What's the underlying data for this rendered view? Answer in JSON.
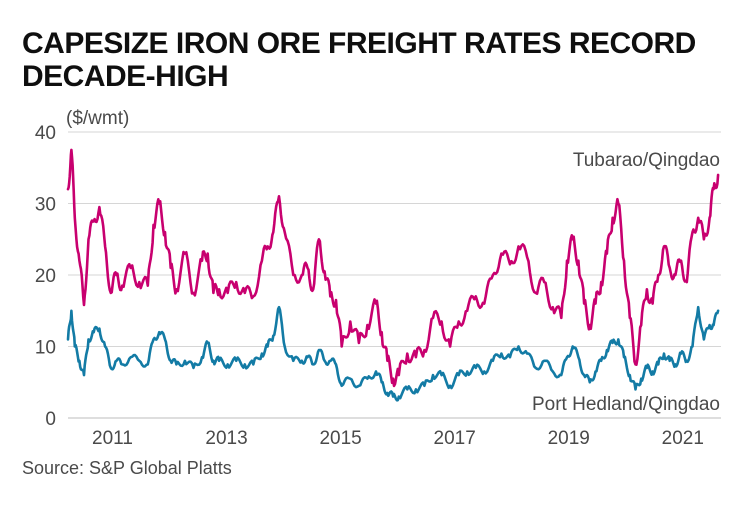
{
  "chart_data": {
    "type": "line",
    "title": "CAPESIZE IRON ORE FREIGHT RATES RECORD DECADE-HIGH",
    "ylabel": "($/wmt)",
    "xlabel": "",
    "ylim": [
      0,
      40
    ],
    "xlim": [
      2010.3,
      2021.75
    ],
    "yticks": [
      0,
      10,
      20,
      30,
      40
    ],
    "xticks": [
      2011,
      2013,
      2015,
      2017,
      2019,
      2021
    ],
    "grid": true,
    "source": "Source: S&P Global Platts",
    "series": [
      {
        "name": "Tubarao/Qingdao",
        "color": "#c8006f",
        "x": [
          2010.3,
          2010.36,
          2010.42,
          2010.5,
          2010.58,
          2010.66,
          2010.75,
          2010.85,
          2010.95,
          2011.05,
          2011.15,
          2011.25,
          2011.4,
          2011.55,
          2011.7,
          2011.8,
          2011.9,
          2012.0,
          2012.1,
          2012.2,
          2012.35,
          2012.5,
          2012.65,
          2012.75,
          2012.85,
          2012.95,
          2013.1,
          2013.25,
          2013.4,
          2013.55,
          2013.7,
          2013.8,
          2013.9,
          2014.0,
          2014.1,
          2014.25,
          2014.4,
          2014.5,
          2014.6,
          2014.7,
          2014.8,
          2014.9,
          2015.0,
          2015.1,
          2015.25,
          2015.4,
          2015.55,
          2015.7,
          2015.8,
          2015.9,
          2016.0,
          2016.1,
          2016.25,
          2016.4,
          2016.55,
          2016.7,
          2016.85,
          2017.0,
          2017.15,
          2017.3,
          2017.45,
          2017.6,
          2017.75,
          2017.9,
          2018.05,
          2018.2,
          2018.35,
          2018.5,
          2018.65,
          2018.8,
          2018.95,
          2019.05,
          2019.15,
          2019.25,
          2019.35,
          2019.45,
          2019.55,
          2019.65,
          2019.75,
          2019.85,
          2019.95,
          2020.05,
          2020.15,
          2020.25,
          2020.35,
          2020.45,
          2020.55,
          2020.65,
          2020.75,
          2020.85,
          2020.95,
          2021.05,
          2021.15,
          2021.25,
          2021.35,
          2021.45,
          2021.55,
          2021.62,
          2021.7
        ],
        "values": [
          32,
          37.5,
          28,
          22,
          15.8,
          25,
          27.5,
          29.5,
          24,
          17.5,
          20,
          18.5,
          21,
          19,
          18.5,
          27,
          30,
          26,
          21,
          18,
          23,
          17.5,
          22,
          23,
          17.5,
          18,
          17.5,
          19,
          17.5,
          17,
          22,
          24,
          26,
          31,
          26,
          20,
          20,
          21,
          18,
          25,
          20.5,
          17,
          16.5,
          10,
          13.5,
          10.5,
          13,
          16,
          12,
          8,
          5.5,
          6,
          9,
          8.5,
          9.5,
          14,
          13.5,
          10,
          13.5,
          15,
          17,
          16,
          20,
          23,
          21.5,
          24,
          22.5,
          17.5,
          19,
          15.5,
          14,
          22,
          25,
          22,
          16,
          13,
          16,
          19,
          23,
          28,
          30,
          22,
          14,
          7.5,
          13,
          18,
          16,
          20,
          24,
          21,
          20,
          22,
          19,
          26,
          28,
          25,
          28,
          32,
          34
        ]
      },
      {
        "name": "Port Hedland/Qingdao",
        "color": "#137ba5",
        "x": [
          2010.3,
          2010.36,
          2010.42,
          2010.5,
          2010.58,
          2010.66,
          2010.75,
          2010.85,
          2010.95,
          2011.05,
          2011.15,
          2011.25,
          2011.4,
          2011.55,
          2011.7,
          2011.8,
          2011.9,
          2012.0,
          2012.1,
          2012.2,
          2012.35,
          2012.5,
          2012.65,
          2012.75,
          2012.85,
          2012.95,
          2013.1,
          2013.25,
          2013.4,
          2013.55,
          2013.7,
          2013.8,
          2013.9,
          2014.0,
          2014.1,
          2014.25,
          2014.4,
          2014.5,
          2014.6,
          2014.7,
          2014.8,
          2014.9,
          2015.0,
          2015.1,
          2015.25,
          2015.4,
          2015.55,
          2015.7,
          2015.8,
          2015.9,
          2016.0,
          2016.1,
          2016.25,
          2016.4,
          2016.55,
          2016.7,
          2016.85,
          2017.0,
          2017.15,
          2017.3,
          2017.45,
          2017.6,
          2017.75,
          2017.9,
          2018.05,
          2018.2,
          2018.35,
          2018.5,
          2018.65,
          2018.8,
          2018.95,
          2019.05,
          2019.15,
          2019.25,
          2019.35,
          2019.45,
          2019.55,
          2019.65,
          2019.75,
          2019.85,
          2019.95,
          2020.05,
          2020.15,
          2020.25,
          2020.35,
          2020.45,
          2020.55,
          2020.65,
          2020.75,
          2020.85,
          2020.95,
          2021.05,
          2021.15,
          2021.25,
          2021.35,
          2021.45,
          2021.55,
          2021.62,
          2021.7
        ],
        "values": [
          11,
          15,
          10,
          8,
          6,
          11,
          12,
          12.5,
          10,
          7,
          8,
          7.5,
          8.5,
          8,
          7.5,
          11,
          12,
          11,
          8,
          7.5,
          8,
          7,
          8.5,
          10.5,
          8,
          8,
          7.5,
          8,
          7.5,
          7.5,
          9,
          10,
          11.5,
          15.5,
          10,
          8,
          8,
          8.5,
          7.5,
          9.5,
          8,
          8,
          7.5,
          4.5,
          5.5,
          4.5,
          5.5,
          6.5,
          5,
          3.5,
          3,
          3,
          4,
          4,
          4.5,
          6,
          6,
          4.5,
          6,
          6.5,
          7,
          6.5,
          8,
          9,
          8.5,
          10,
          9,
          7,
          8,
          6.5,
          6,
          8.5,
          10,
          8.5,
          6,
          5,
          6.5,
          8,
          9.5,
          10.5,
          11,
          8.5,
          6,
          4,
          5.5,
          7,
          6.5,
          7.5,
          9,
          8,
          7.5,
          9,
          8,
          10,
          15.5,
          11,
          13,
          13,
          15
        ]
      }
    ],
    "series_labels": {
      "top": "Tubarao/Qingdao",
      "bottom": "Port Hedland/Qingdao"
    }
  }
}
